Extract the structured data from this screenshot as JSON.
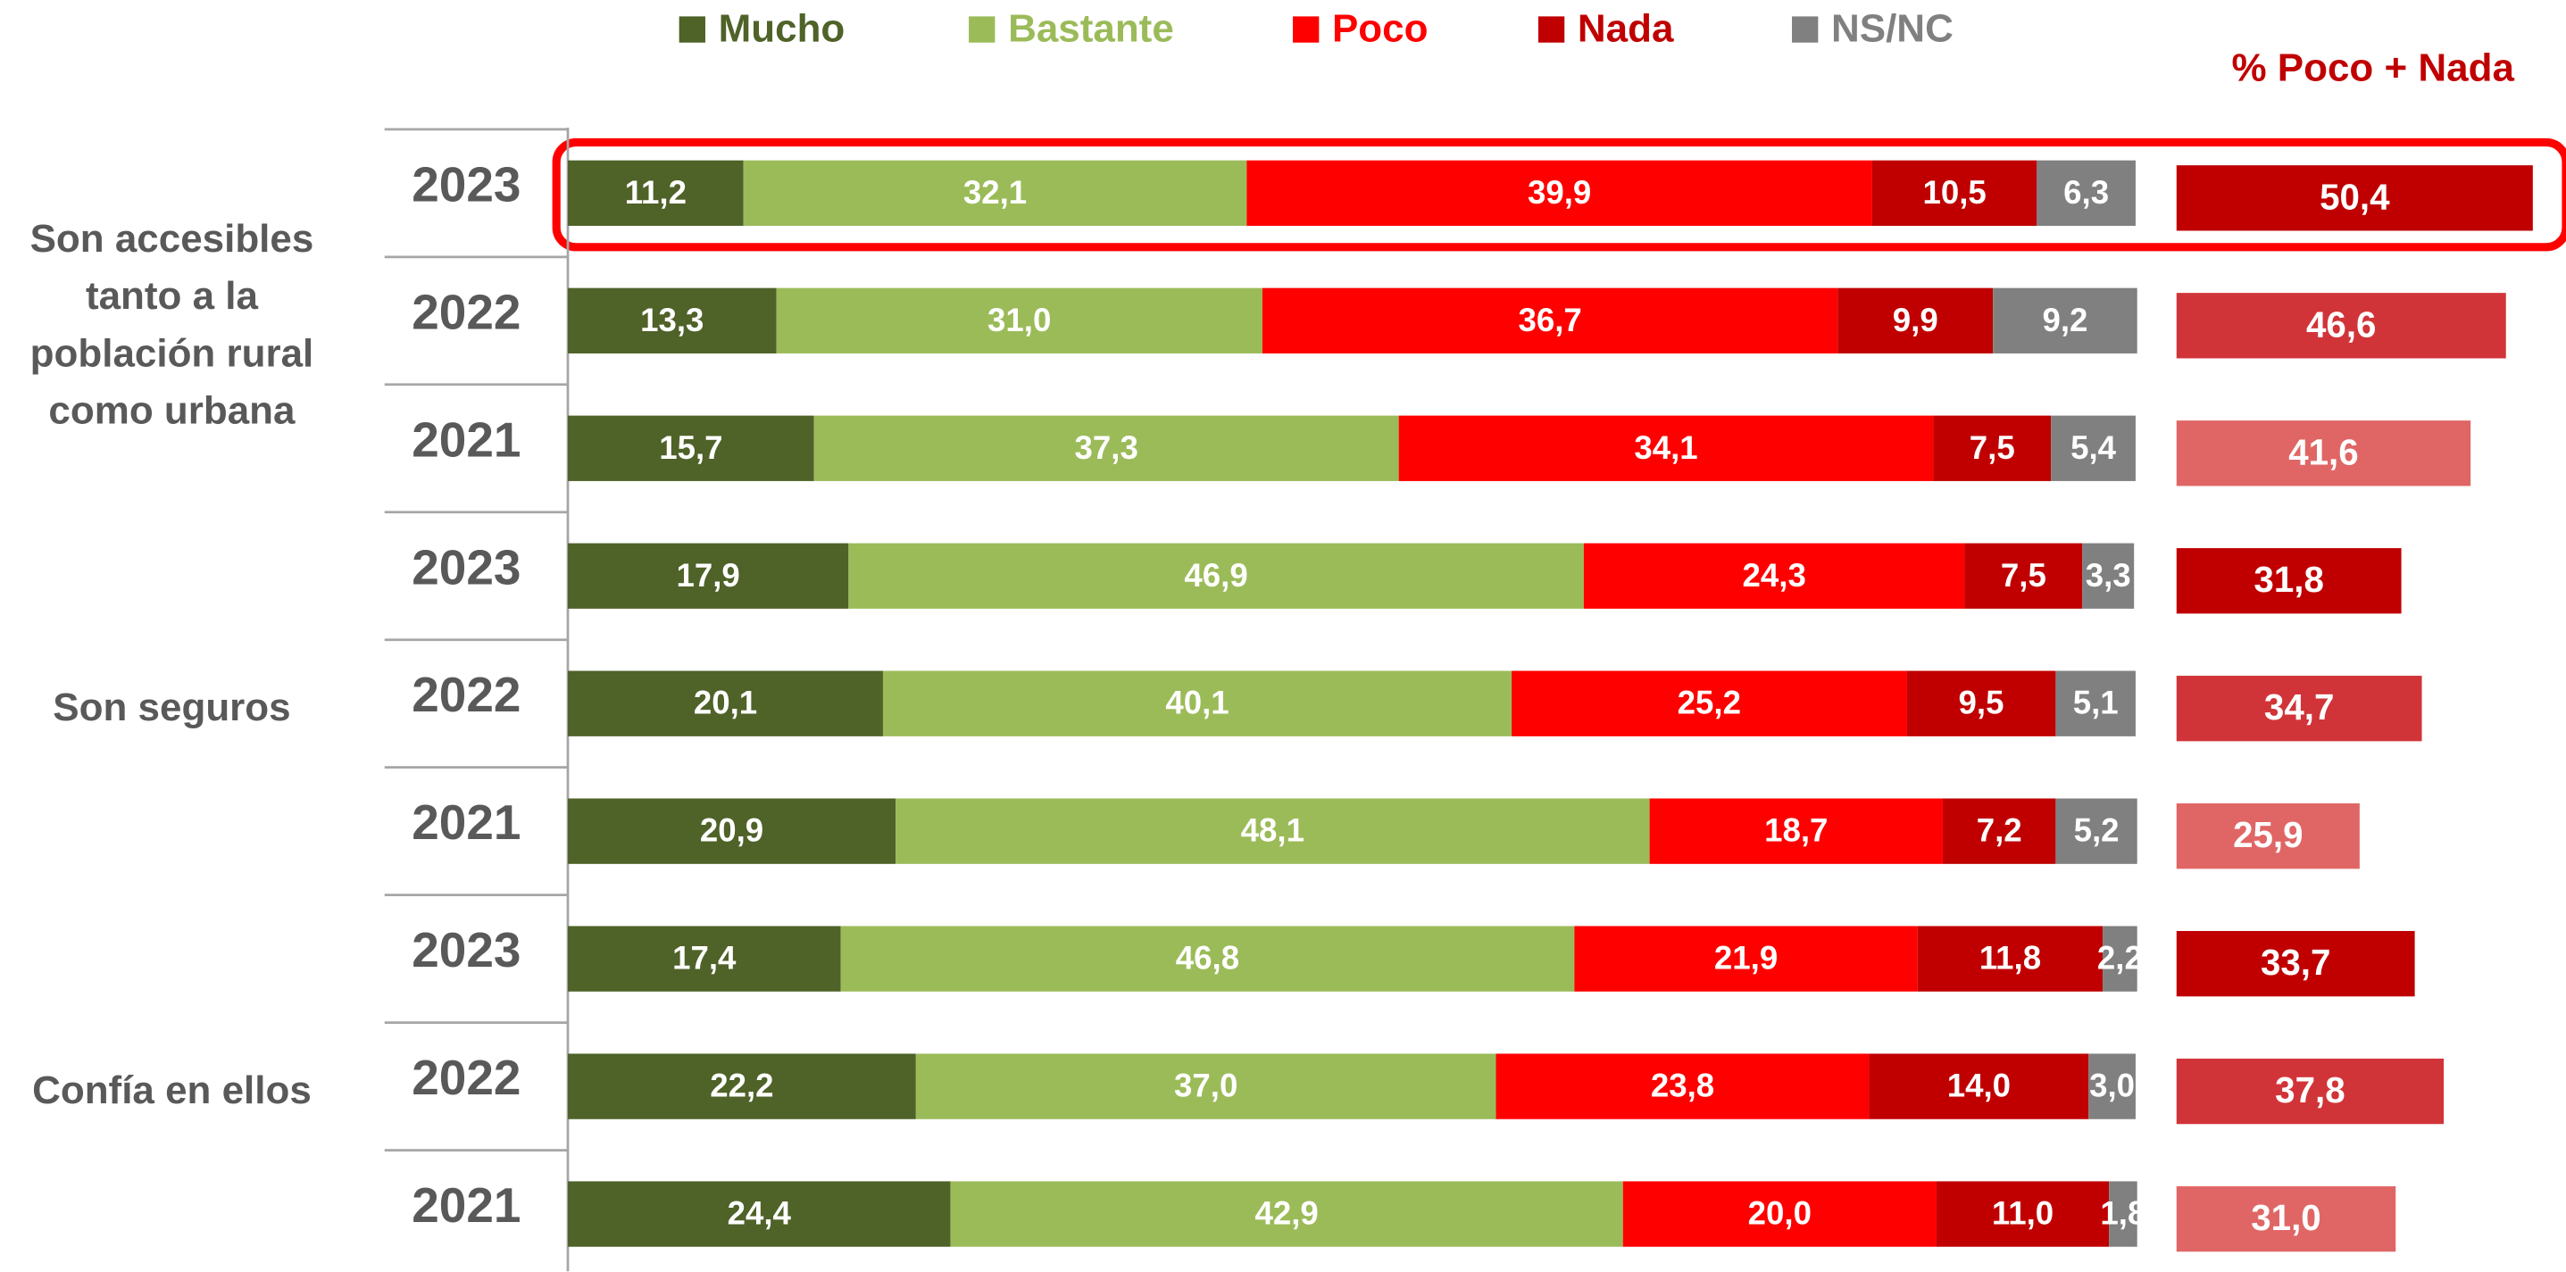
{
  "chart_data": {
    "type": "bar",
    "orientation": "horizontal",
    "stacked": true,
    "categories": [
      "2023",
      "2022",
      "2021",
      "2023",
      "2022",
      "2021",
      "2023",
      "2022",
      "2021"
    ],
    "groups": [
      {
        "label": [
          "Son accesibles",
          "tanto a la",
          "población rural",
          "como urbana"
        ]
      },
      {
        "label": [
          "Son seguros"
        ]
      },
      {
        "label": [
          "Confía en ellos"
        ]
      }
    ],
    "xlim": [
      0,
      100
    ],
    "series": [
      {
        "name": "Mucho",
        "color": "#4f6228",
        "values": [
          11.2,
          13.3,
          15.7,
          17.9,
          20.1,
          20.9,
          17.4,
          22.2,
          24.4
        ],
        "value_labels": [
          "11,2",
          "13,3",
          "15,7",
          "17,9",
          "20,1",
          "20,9",
          "17,4",
          "22,2",
          "24,4"
        ]
      },
      {
        "name": "Bastante",
        "color": "#9bbb59",
        "values": [
          32.1,
          31.0,
          37.3,
          46.9,
          40.1,
          48.1,
          46.8,
          37.0,
          42.9
        ],
        "value_labels": [
          "32,1",
          "31,0",
          "37,3",
          "46,9",
          "40,1",
          "48,1",
          "46,8",
          "37,0",
          "42,9"
        ]
      },
      {
        "name": "Poco",
        "color": "#ff0000",
        "values": [
          39.9,
          36.7,
          34.1,
          24.3,
          25.2,
          18.7,
          21.9,
          23.8,
          20.0
        ],
        "value_labels": [
          "39,9",
          "36,7",
          "34,1",
          "24,3",
          "25,2",
          "18,7",
          "21,9",
          "23,8",
          "20,0"
        ]
      },
      {
        "name": "Nada",
        "color": "#c00000",
        "values": [
          10.5,
          9.9,
          7.5,
          7.5,
          9.5,
          7.2,
          11.8,
          14.0,
          11.0
        ],
        "value_labels": [
          "10,5",
          "9,9",
          "7,5",
          "7,5",
          "9,5",
          "7,2",
          "11,8",
          "14,0",
          "11,0"
        ]
      },
      {
        "name": "NS/NC",
        "color": "#808080",
        "values": [
          6.3,
          9.2,
          5.4,
          3.3,
          5.1,
          5.2,
          2.2,
          3.0,
          1.8
        ],
        "value_labels": [
          "6,3",
          "9,2",
          "5,4",
          "3,3",
          "5,1",
          "5,2",
          "2,2",
          "3,0",
          "1,8"
        ]
      }
    ],
    "totals": {
      "name": "% Poco + Nada",
      "colors": [
        "#c00000",
        "#d13438",
        "#e06666",
        "#c00000",
        "#d13438",
        "#e06666",
        "#c00000",
        "#d13438",
        "#e06666"
      ],
      "values": [
        50.4,
        46.6,
        41.6,
        31.8,
        34.7,
        25.9,
        33.7,
        37.8,
        31.0
      ],
      "value_labels": [
        "50,4",
        "46,6",
        "41,6",
        "31,8",
        "34,7",
        "25,9",
        "33,7",
        "37,8",
        "31,0"
      ]
    },
    "annotations": [
      "13"
    ]
  }
}
